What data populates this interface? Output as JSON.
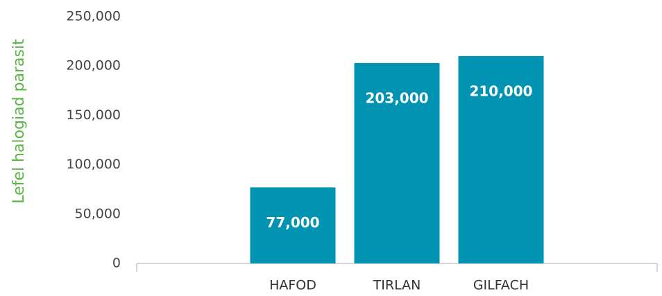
{
  "chart_data": {
    "type": "bar",
    "y_label": "Lefel halogiad parasit",
    "categories": [
      null,
      "HAFOD",
      "TIRLAN",
      "GILFACH",
      null
    ],
    "values": [
      null,
      77000,
      203000,
      210000,
      null
    ],
    "value_labels": [
      null,
      "77,000",
      "203,000",
      "210,000",
      null
    ],
    "color": "#0093b2",
    "ylim": [
      0,
      250000
    ],
    "yticks": [
      0,
      {
        "value": 50000,
        "label": "50,000"
      },
      {
        "value": 100000,
        "label": "100,000"
      },
      {
        "value": 150000,
        "label": "150,000"
      },
      {
        "value": 200000,
        "label": "200,000"
      },
      {
        "value": 250000,
        "label": "250,000"
      }
    ],
    "grid": false
  }
}
